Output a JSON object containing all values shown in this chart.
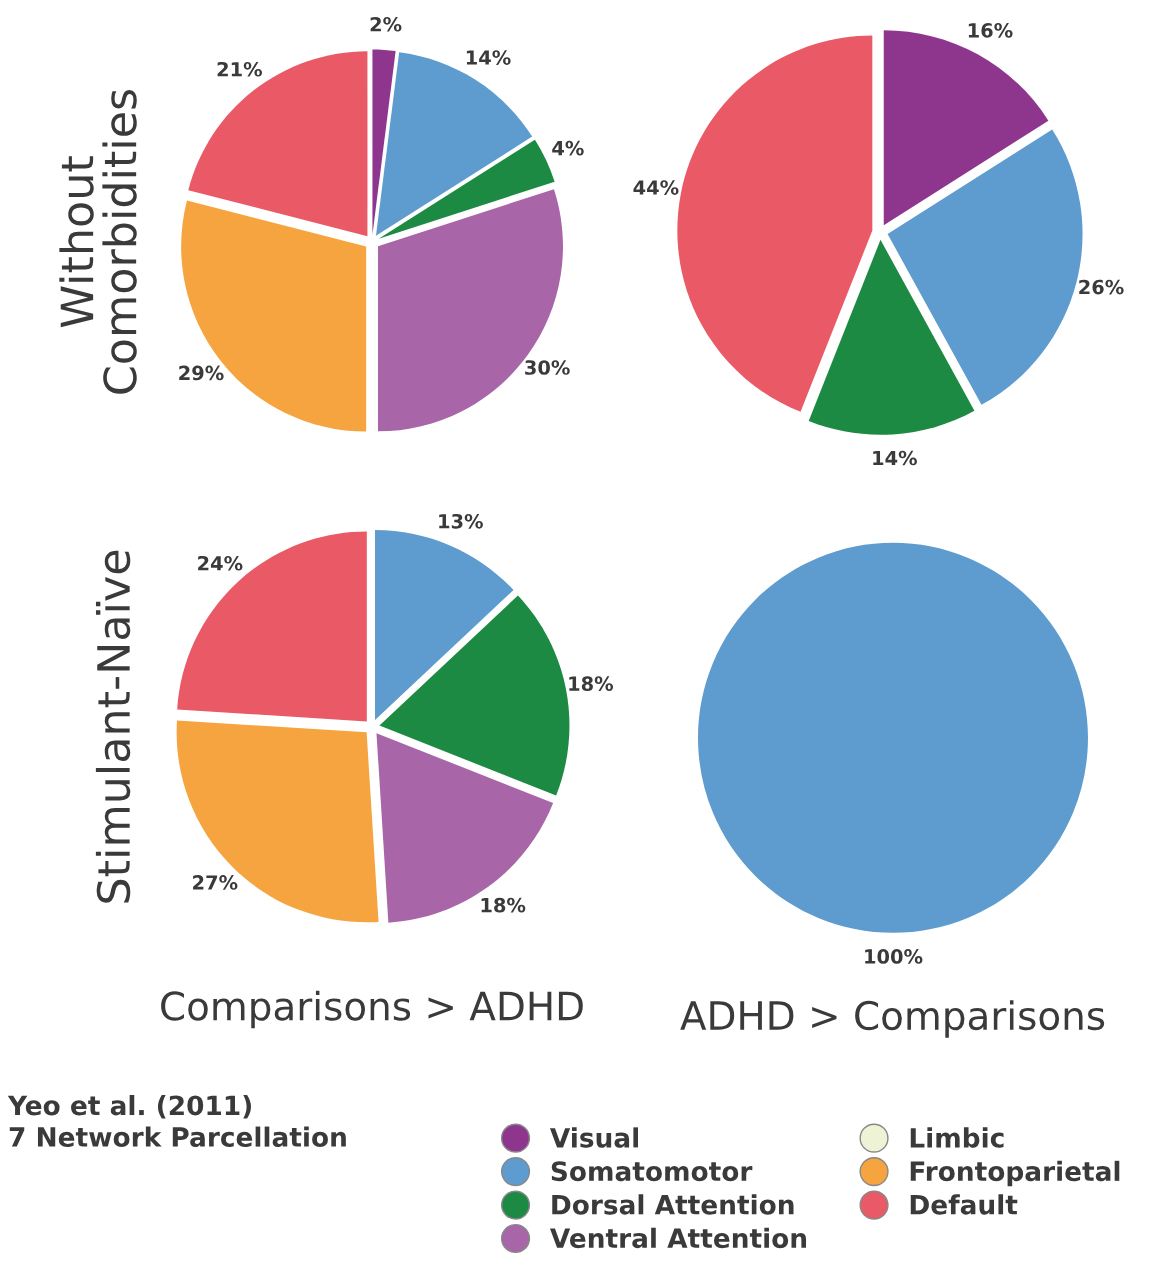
{
  "chart_data": [
    {
      "type": "pie",
      "ylabel": "Without\nComorbidities",
      "legend": "bottom",
      "legend_title": "Yeo et al. (2011)\n7 Network Parcellation",
      "categories": [
        "Visual",
        "Somatomotor",
        "Dorsal Attention",
        "Ventral Attention",
        "Limbic",
        "Frontoparietal",
        "Default"
      ],
      "values": [
        2,
        14,
        4,
        30,
        0,
        29,
        21
      ],
      "colors": [
        "#8e358e",
        "#5e9ccf",
        "#1c8a43",
        "#a866a8",
        "#eef3d6",
        "#f6a43f",
        "#e95a66"
      ],
      "value_labels": [
        "2%",
        "14%",
        "4%",
        "30%",
        null,
        "29%",
        "21%"
      ]
    },
    {
      "type": "pie",
      "categories": [
        null,
        null,
        null,
        null
      ],
      "values": [
        16,
        26,
        14,
        44
      ],
      "colors": [
        "#8e358e",
        "#5e9ccf",
        "#1c8a43",
        "#e95a66"
      ],
      "value_labels": [
        "16%",
        "26%",
        "14%",
        "44%"
      ]
    },
    {
      "type": "pie",
      "ylabel": "Stimulant-Naïve",
      "xlabel": "Comparisons > ADHD",
      "categories": [
        null,
        null,
        null,
        null,
        null
      ],
      "values": [
        13,
        18,
        18,
        27,
        24
      ],
      "colors": [
        "#5e9ccf",
        "#1c8a43",
        "#a866a8",
        "#f6a43f",
        "#e95a66"
      ],
      "value_labels": [
        "13%",
        "18%",
        "18%",
        "27%",
        "24%"
      ]
    },
    {
      "type": "pie",
      "xlabel": "ADHD > Comparisons",
      "categories": [
        null
      ],
      "values": [
        100
      ],
      "colors": [
        "#5e9ccf"
      ],
      "value_labels": [
        "100%"
      ]
    }
  ]
}
